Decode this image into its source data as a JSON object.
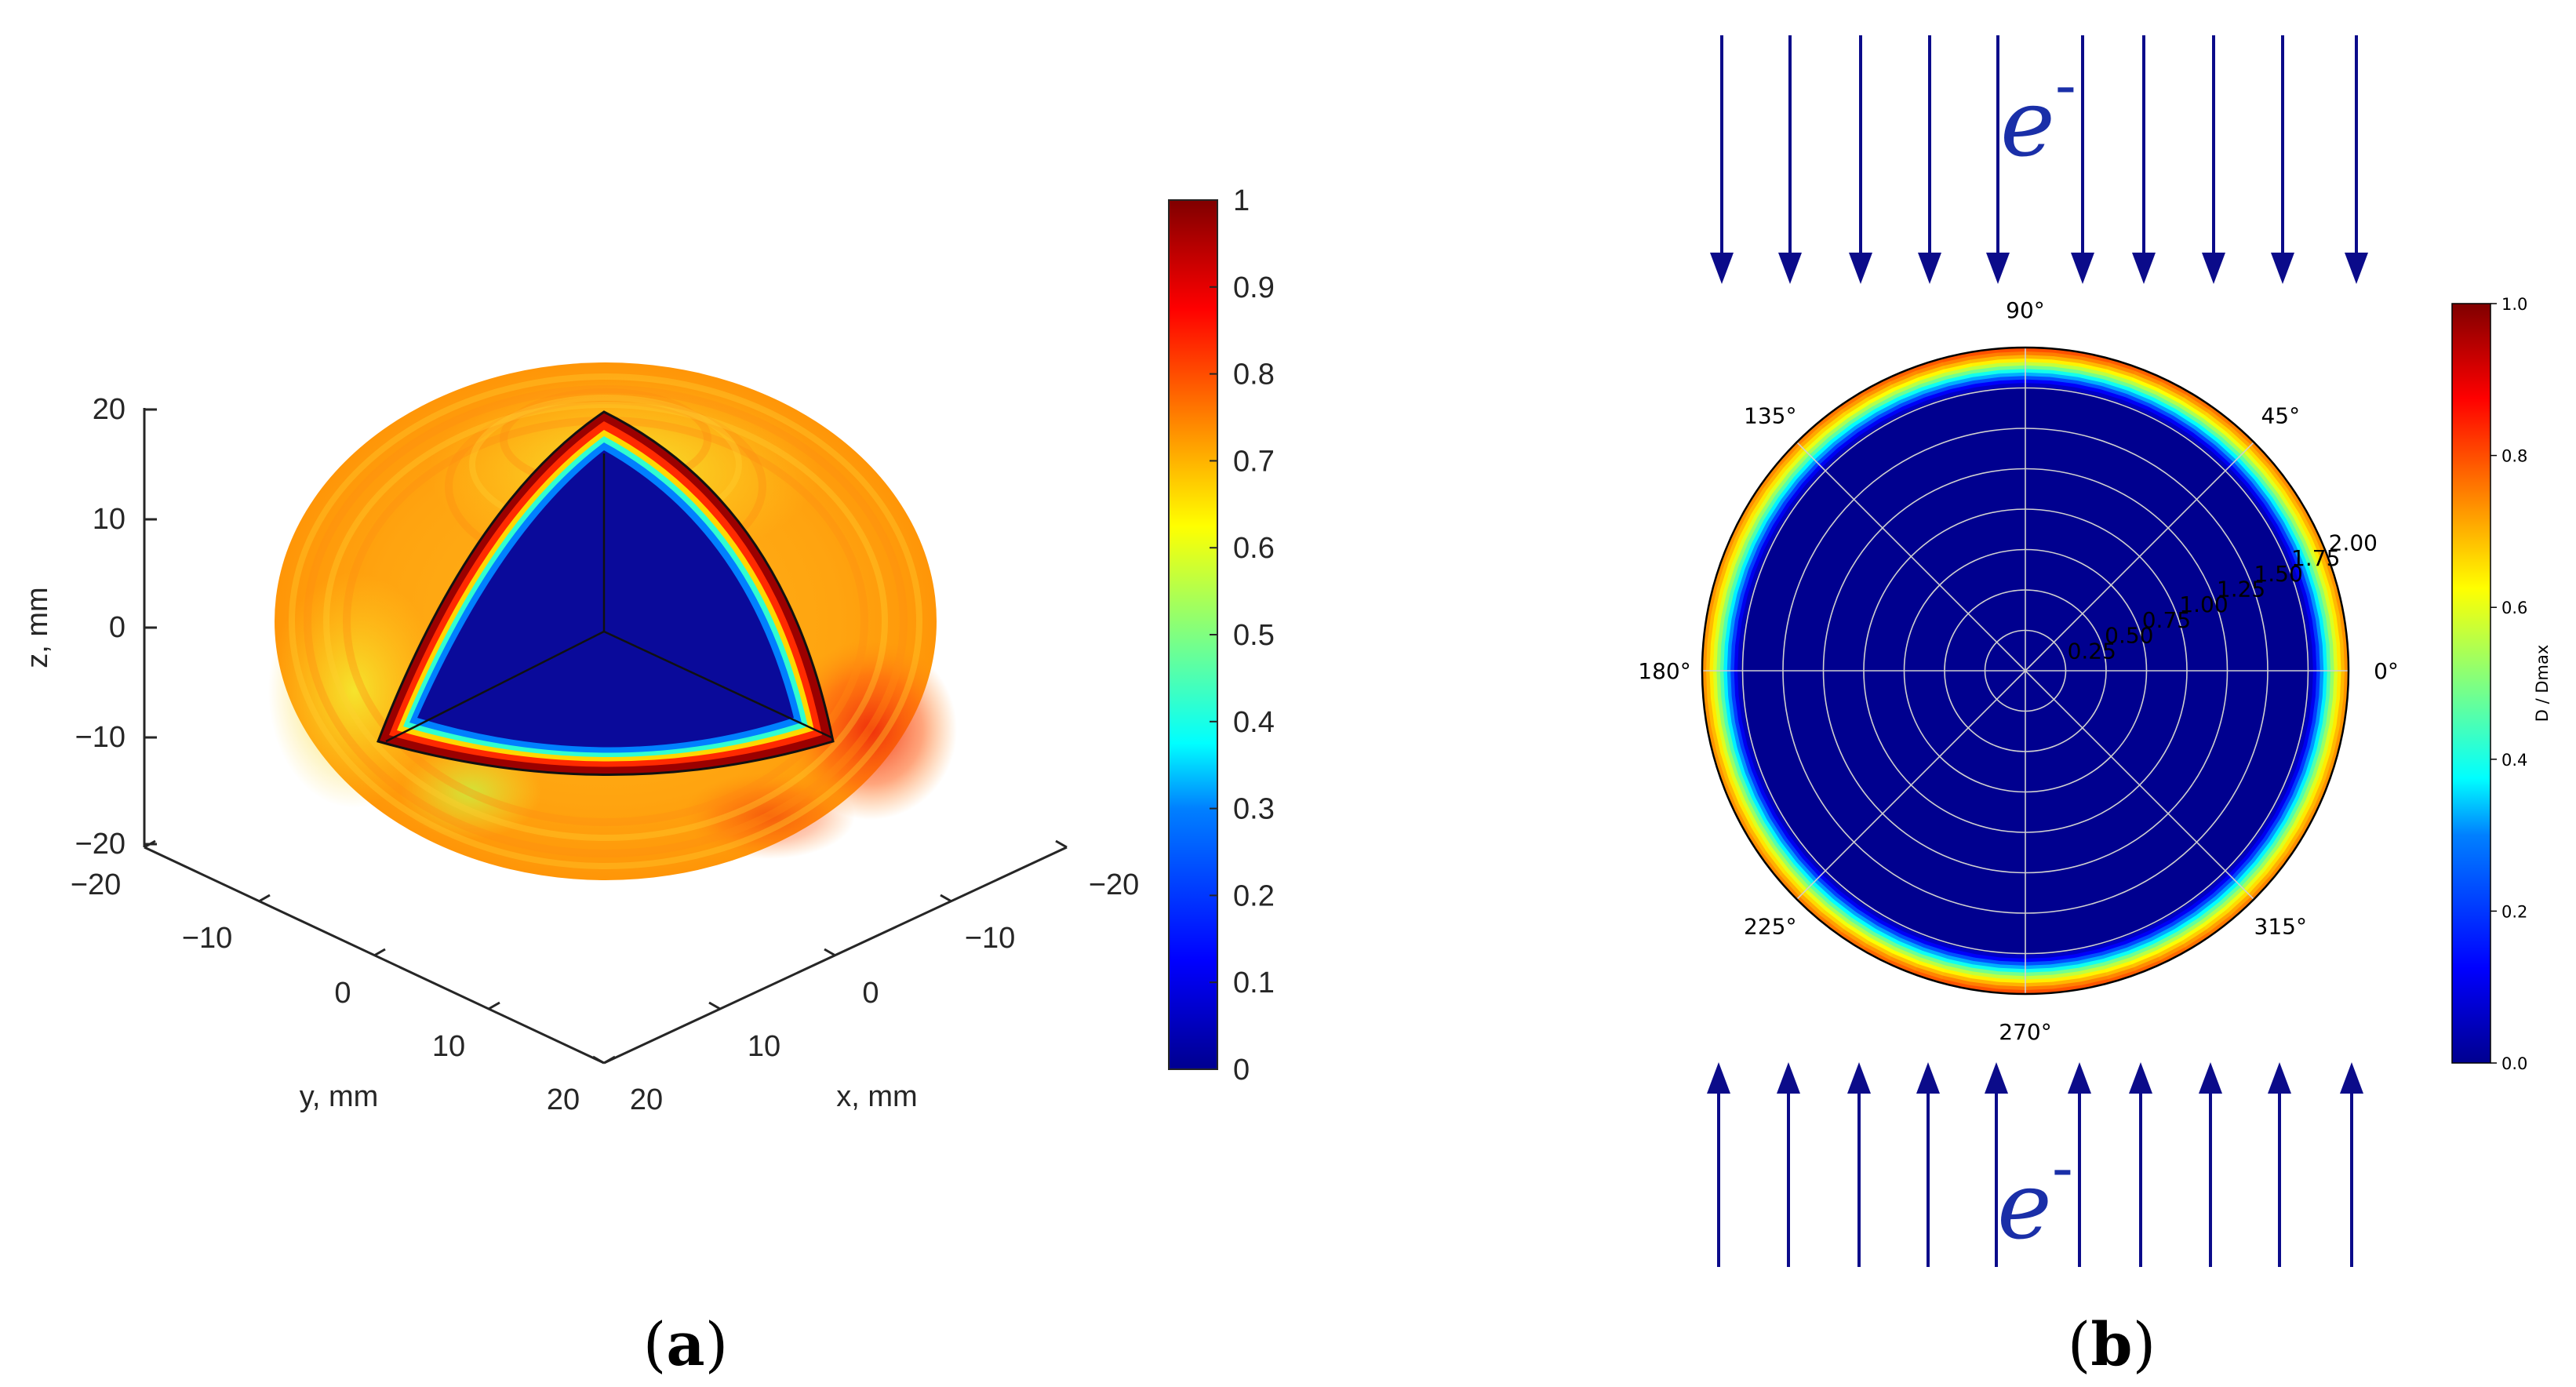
{
  "panels": {
    "a": {
      "label": "(a)",
      "letter": "a"
    },
    "b": {
      "label": "(b)",
      "letter": "b"
    }
  },
  "colors": {
    "arrow": "#0b0b8a",
    "electron": "#1a2fa8",
    "jet_colormap": [
      "#00008f",
      "#0000ff",
      "#0080ff",
      "#00ffff",
      "#80ff80",
      "#ffff00",
      "#ff8000",
      "#ff0000",
      "#800000"
    ]
  },
  "chart_data": [
    {
      "type": "surface3d",
      "title": "",
      "description_values": {
        "outer_surface_normalized_dose_range": [
          0.62,
          0.92
        ],
        "cut_face_core_value": 0.0,
        "cut_edge_max_value": 1.0
      },
      "xlabel": "x, mm",
      "ylabel": "y, mm",
      "zlabel": "z, mm",
      "xlim": [
        -20,
        20
      ],
      "ylim": [
        -20,
        20
      ],
      "zlim": [
        -20,
        20
      ],
      "xticks": [
        "20",
        "10",
        "0",
        "−10",
        "−20"
      ],
      "yticks": [
        "−20",
        "−10",
        "0",
        "10",
        "20"
      ],
      "zticks": [
        "20",
        "10",
        "0",
        "−10",
        "−20"
      ],
      "colorbar": {
        "range": [
          0,
          1
        ],
        "ticks": [
          "1",
          "0.9",
          "0.8",
          "0.7",
          "0.6",
          "0.5",
          "0.4",
          "0.3",
          "0.2",
          "0.1",
          "0"
        ]
      }
    },
    {
      "type": "polar_heatmap",
      "title": "",
      "angle_ticks": [
        "0°",
        "45°",
        "90°",
        "135°",
        "180°",
        "225°",
        "270°",
        "315°"
      ],
      "radial_ticks": [
        "0.25",
        "0.50",
        "0.75",
        "1.00",
        "1.25",
        "1.50",
        "1.75",
        "2.00"
      ],
      "radial_range": [
        0,
        2.0
      ],
      "radial_profile": {
        "r": [
          0.0,
          1.75,
          1.8,
          1.84,
          1.88,
          1.92,
          1.96,
          2.0
        ],
        "value": [
          0.0,
          0.0,
          0.12,
          0.28,
          0.45,
          0.58,
          0.68,
          0.75
        ]
      },
      "angular_enhancement": {
        "at_angles_deg": [
          90,
          270
        ],
        "extra_value": 0.07
      },
      "colorbar": {
        "label": "D / Dmax",
        "range": [
          0,
          1
        ],
        "ticks": [
          "1.0",
          "0.8",
          "0.6",
          "0.4",
          "0.2",
          "0.0"
        ]
      },
      "annotations": {
        "electron_top": {
          "symbol": "e",
          "charge": "-"
        },
        "electron_bottom": {
          "symbol": "e",
          "charge": "-"
        },
        "arrows_top_count": 10,
        "arrows_bottom_count": 10
      }
    }
  ]
}
